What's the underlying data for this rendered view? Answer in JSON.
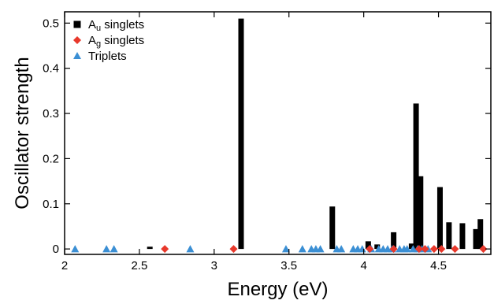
{
  "chart_data": {
    "type": "bar",
    "xlabel": "Energy (eV)",
    "ylabel": "Oscillator strength",
    "xlim": [
      2,
      4.85
    ],
    "ylim": [
      -0.012,
      0.525
    ],
    "xticks": [
      2,
      2.5,
      3,
      3.5,
      4,
      4.5
    ],
    "xtick_labels": [
      "2",
      "2.5",
      "3",
      "3.5",
      "4",
      "4.5"
    ],
    "yticks": [
      0,
      0.1,
      0.2,
      0.3,
      0.4,
      0.5
    ],
    "ytick_labels": [
      "0",
      "0.1",
      "0.2",
      "0.3",
      "0.4",
      "0.5"
    ],
    "grid": false,
    "legend_position": "top-left",
    "legend": [
      {
        "base": "A",
        "sub": "u",
        "rest": " singlets",
        "marker": "square",
        "color": "#000000"
      },
      {
        "base": "A",
        "sub": "g",
        "rest": " singlets",
        "marker": "diamond",
        "color": "#e8382b"
      },
      {
        "base": "Triplets",
        "sub": "",
        "rest": "",
        "marker": "triangle",
        "color": "#3b8fd4"
      }
    ],
    "series": [
      {
        "type": "bar",
        "color": "#000000",
        "x": [
          2.57,
          3.18,
          3.79,
          4.03,
          4.09,
          4.2,
          4.32,
          4.35,
          4.38,
          4.51,
          4.57,
          4.66,
          4.75,
          4.78
        ],
        "values": [
          0.005,
          0.51,
          0.094,
          0.017,
          0.01,
          0.037,
          0.012,
          0.322,
          0.161,
          0.137,
          0.059,
          0.057,
          0.044,
          0.066
        ]
      },
      {
        "type": "scatter",
        "marker": "diamond",
        "color": "#e8382b",
        "x": [
          2.67,
          3.13,
          4.04,
          4.2,
          4.37,
          4.41,
          4.47,
          4.52,
          4.61,
          4.8
        ],
        "values": [
          0,
          0,
          0,
          0,
          0,
          0,
          0,
          0,
          0,
          0
        ]
      },
      {
        "type": "scatter",
        "marker": "triangle",
        "color": "#3b8fd4",
        "x": [
          2.07,
          2.28,
          2.33,
          2.84,
          3.48,
          3.59,
          3.65,
          3.68,
          3.71,
          3.82,
          3.85,
          3.93,
          3.96,
          3.99,
          4.05,
          4.1,
          4.13,
          4.16,
          4.19,
          4.24,
          4.27,
          4.29,
          4.33,
          4.36,
          4.39,
          4.43
        ],
        "values": [
          0,
          0,
          0,
          0,
          0,
          0,
          0,
          0,
          0,
          0,
          0,
          0,
          0,
          0,
          0,
          0,
          0,
          0,
          0,
          0,
          0,
          0,
          0,
          0,
          0,
          0
        ]
      }
    ]
  }
}
